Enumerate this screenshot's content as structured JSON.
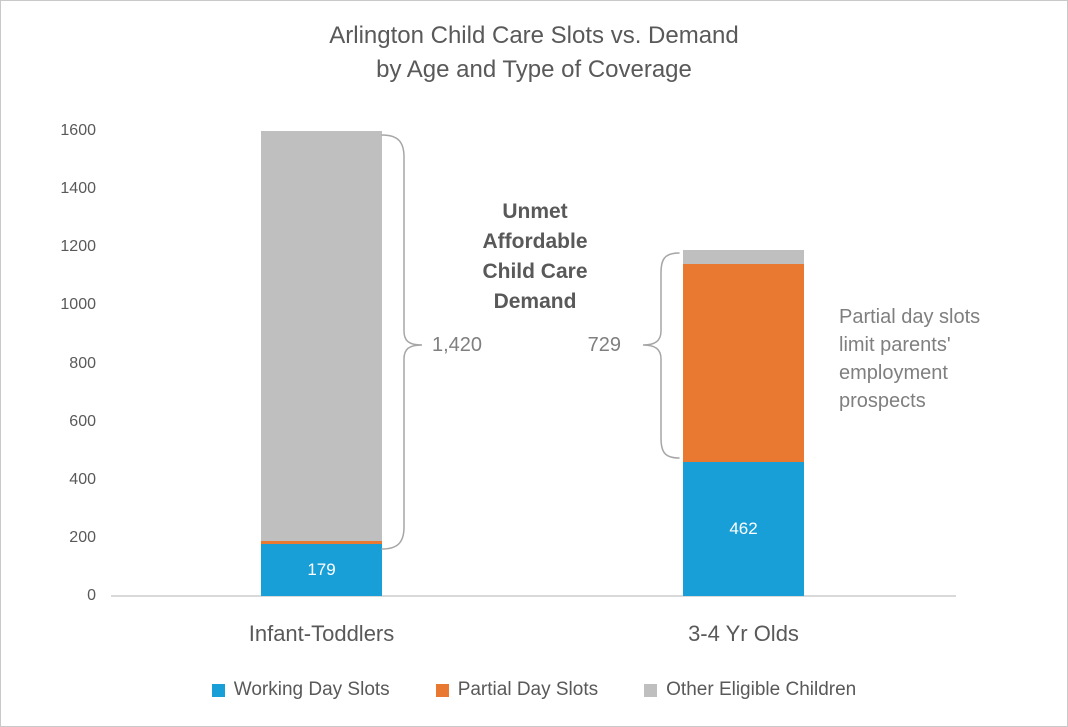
{
  "title": {
    "line1": "Arlington Child Care Slots vs. Demand",
    "line2": "by Age and Type of Coverage"
  },
  "chart_data": {
    "type": "bar",
    "stacked": true,
    "categories": [
      "Infant-Toddlers",
      "3-4 Yr Olds"
    ],
    "series": [
      {
        "name": "Working Day Slots",
        "color": "#189fd7",
        "values": [
          179,
          462
        ],
        "data_labels": [
          "179",
          "462"
        ]
      },
      {
        "name": "Partial Day Slots",
        "color": "#e97930",
        "values": [
          10,
          680
        ],
        "data_labels": [
          null,
          null
        ]
      },
      {
        "name": "Other Eligible Children",
        "color": "#bfbfbf",
        "values": [
          1410,
          49
        ],
        "data_labels": [
          null,
          null
        ]
      }
    ],
    "ylim": [
      0,
      1600
    ],
    "ytick_step": 200,
    "grid": false,
    "legend_position": "bottom",
    "totals": [
      1599,
      1191
    ]
  },
  "annotations": {
    "unmet_heading": "Unmet\nAffordable\nChild Care\nDemand",
    "unmet_infant_toddlers": "1,420",
    "unmet_3_4_yr_olds": "729",
    "partial_day_note": "Partial day slots\nlimit parents'\nemployment\nprospects"
  },
  "colors": {
    "title_text": "#595959",
    "axis_text": "#595959",
    "annotation_text": "#7f7f7f",
    "brace_stroke": "#a6a6a6",
    "axis_line": "#d9d9d9",
    "bar_label_text": "#ffffff"
  }
}
